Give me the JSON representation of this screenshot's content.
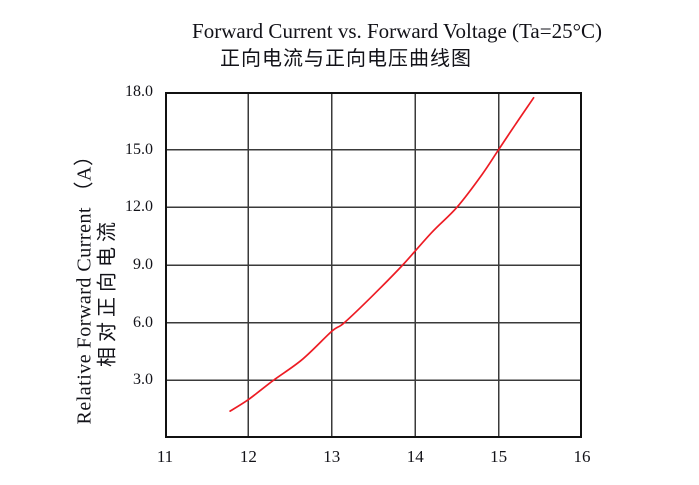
{
  "page": {
    "background": "#ffffff"
  },
  "header": {
    "title": "Forward Current vs. Forward Voltage (Ta=25°C)",
    "subtitle_zh": "正向电流与正向电压曲线图"
  },
  "y_axis": {
    "label_en": "Relative Forward Current （A）",
    "label_zh": "相对正向电流"
  },
  "chart_data": {
    "type": "line",
    "title": "Forward Current vs. Forward Voltage (Ta=25°C)",
    "subtitle": "正向电流与正向电压曲线图",
    "xlabel": "",
    "ylabel": "Relative Forward Current （A） / 相对正向电流",
    "xlim": [
      11,
      16
    ],
    "ylim": [
      0,
      18
    ],
    "grid": true,
    "legend": "none",
    "x_ticks": [
      {
        "value": 11,
        "label": "11"
      },
      {
        "value": 12,
        "label": "12"
      },
      {
        "value": 13,
        "label": "13"
      },
      {
        "value": 14,
        "label": "14"
      },
      {
        "value": 15,
        "label": "15"
      },
      {
        "value": 16,
        "label": "16"
      }
    ],
    "y_ticks": [
      {
        "value": 3,
        "label": "3.0"
      },
      {
        "value": 6,
        "label": "6.0"
      },
      {
        "value": 9,
        "label": "9.0"
      },
      {
        "value": 12,
        "label": "12.0"
      },
      {
        "value": 15,
        "label": "15.0"
      },
      {
        "value": 18,
        "label": "18.0"
      }
    ],
    "colors": {
      "curve": "#ed1c24",
      "grid": "#3a3a3a",
      "border": "#111111"
    },
    "series": [
      {
        "name": "forward-current-vs-forward-voltage",
        "points": [
          [
            11.78,
            1.4
          ],
          [
            12.0,
            2.0
          ],
          [
            12.3,
            3.0
          ],
          [
            12.65,
            4.1
          ],
          [
            13.0,
            5.55
          ],
          [
            13.15,
            6.0
          ],
          [
            13.5,
            7.45
          ],
          [
            13.85,
            9.0
          ],
          [
            14.2,
            10.7
          ],
          [
            14.5,
            12.0
          ],
          [
            14.8,
            13.7
          ],
          [
            15.0,
            15.0
          ],
          [
            15.2,
            16.3
          ],
          [
            15.42,
            17.7
          ]
        ]
      }
    ]
  }
}
